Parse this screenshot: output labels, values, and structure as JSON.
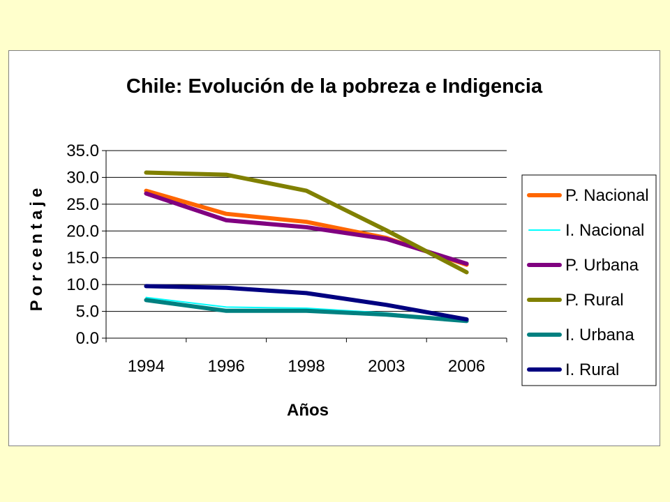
{
  "chart_data": {
    "type": "line",
    "title": "Chile: Evolución de la pobreza e Indigencia",
    "xlabel": "Años",
    "ylabel": "Porcentaje",
    "categories": [
      "1994",
      "1996",
      "1998",
      "2003",
      "2006"
    ],
    "ylim": [
      0,
      35
    ],
    "ytick_step": 5,
    "ytick_labels": [
      "0.0",
      "5.0",
      "10.0",
      "15.0",
      "20.0",
      "25.0",
      "30.0",
      "35.0"
    ],
    "grid": true,
    "legend_position": "right",
    "series": [
      {
        "name": "P. Nacional",
        "color": "#FF6600",
        "values": [
          27.5,
          23.2,
          21.7,
          18.7,
          13.7
        ]
      },
      {
        "name": "I. Nacional",
        "color": "#00FFFF",
        "values": [
          7.6,
          5.8,
          5.6,
          4.7,
          3.2
        ]
      },
      {
        "name": "P. Urbana",
        "color": "#800080",
        "values": [
          27.0,
          22.0,
          20.7,
          18.5,
          13.9
        ]
      },
      {
        "name": "P. Rural",
        "color": "#808000",
        "values": [
          30.9,
          30.5,
          27.5,
          20.1,
          12.3
        ]
      },
      {
        "name": "I. Urbana",
        "color": "#008080",
        "values": [
          7.1,
          5.1,
          5.1,
          4.4,
          3.2
        ]
      },
      {
        "name": "I. Rural",
        "color": "#000080",
        "values": [
          9.7,
          9.4,
          8.4,
          6.2,
          3.5
        ]
      }
    ]
  }
}
